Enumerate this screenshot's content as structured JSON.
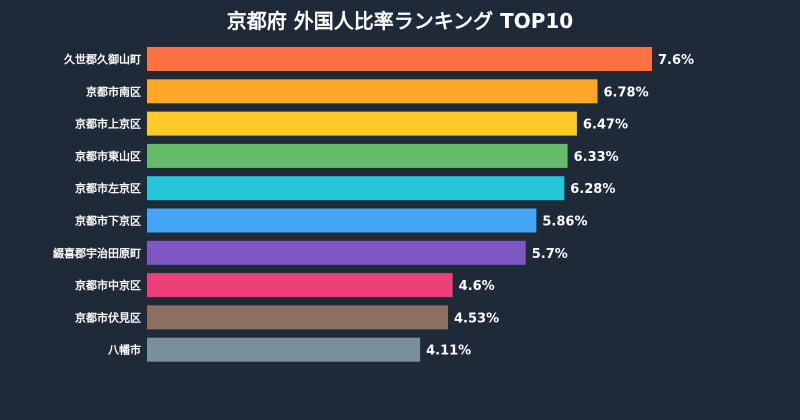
{
  "chart_data": {
    "type": "bar",
    "orientation": "horizontal",
    "title": "京都府 外国人比率ランキング TOP10",
    "xlabel": "",
    "ylabel": "",
    "grid": false,
    "categories": [
      "久世郡久御山町",
      "京都市南区",
      "京都市上京区",
      "京都市東山区",
      "京都市左京区",
      "京都市下京区",
      "綴喜郡宇治田原町",
      "京都市中京区",
      "京都市伏見区",
      "八幡市"
    ],
    "values": [
      7.6,
      6.78,
      6.47,
      6.33,
      6.28,
      5.86,
      5.7,
      4.6,
      4.53,
      4.11
    ],
    "value_labels": [
      "7.6%",
      "6.78%",
      "6.47%",
      "6.33%",
      "6.28%",
      "5.86%",
      "5.7%",
      "4.6%",
      "4.53%",
      "4.11%"
    ],
    "colors": [
      "#ff7043",
      "#ffa726",
      "#ffca28",
      "#66bb6a",
      "#26c6da",
      "#42a5f5",
      "#7e57c2",
      "#ec407a",
      "#8d6e63",
      "#78909c"
    ],
    "background": "#1e2a38",
    "text_color": "#ffffff"
  }
}
